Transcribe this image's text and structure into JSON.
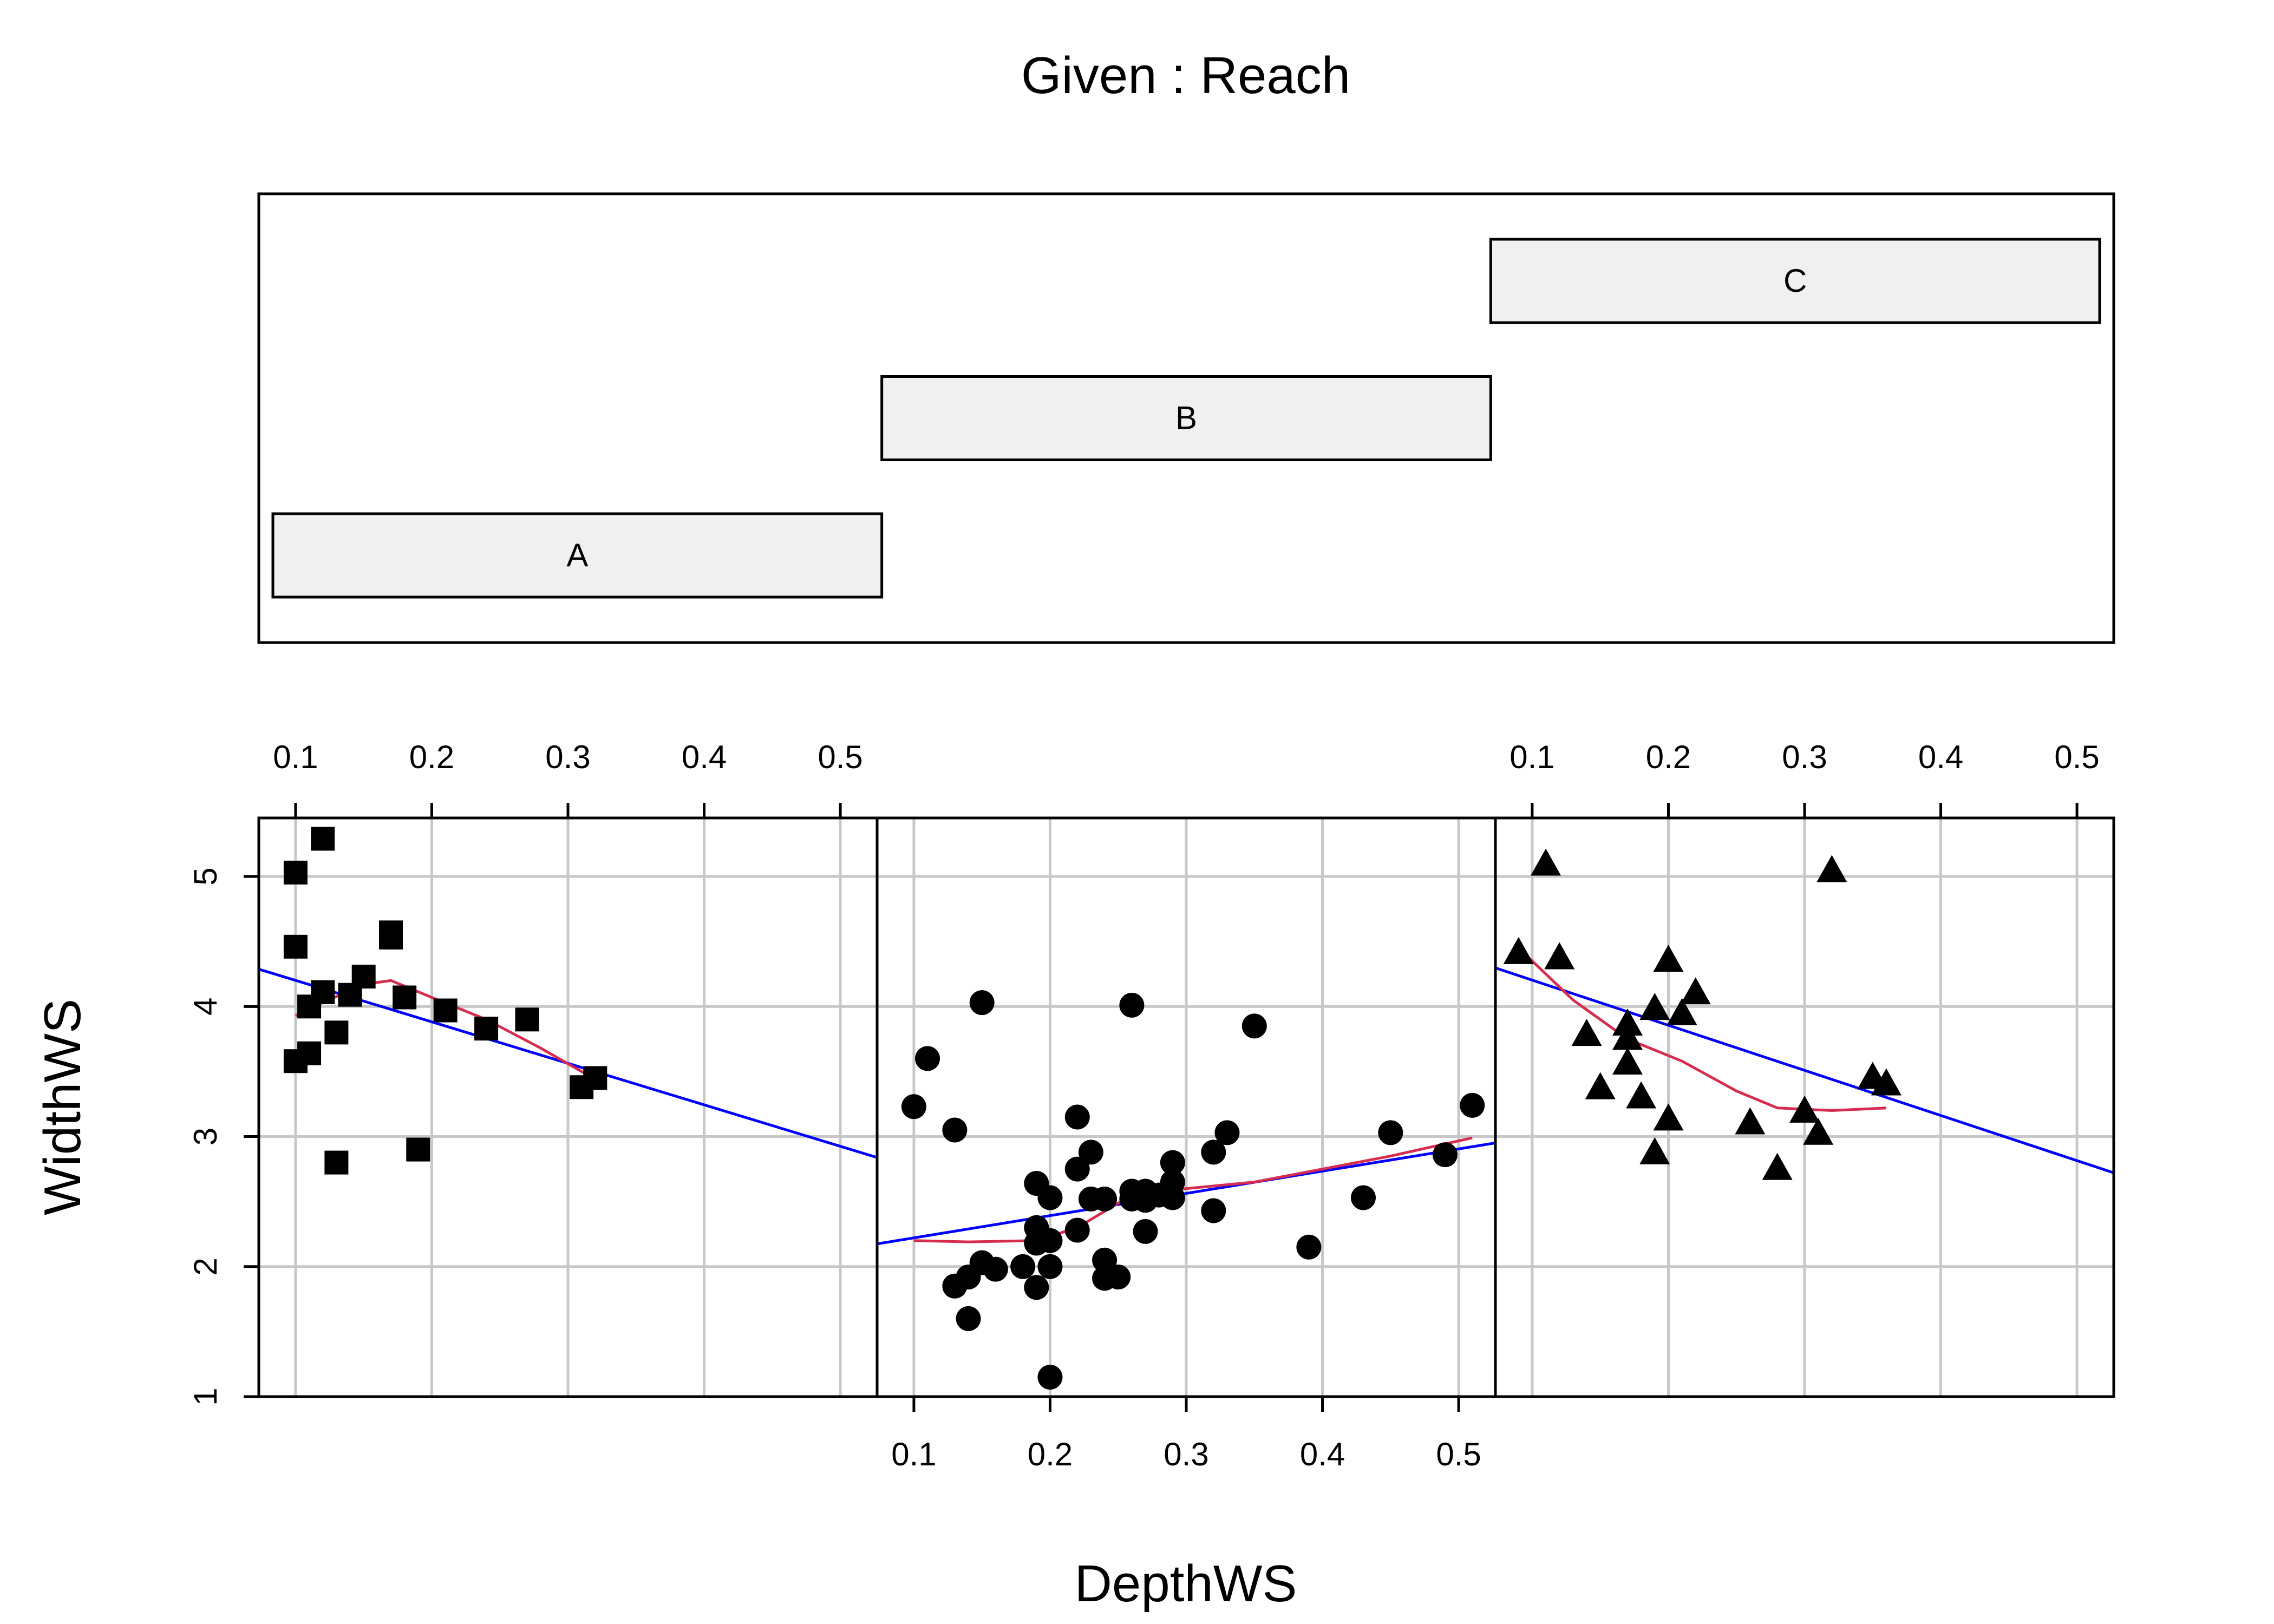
{
  "chart_data": {
    "type": "coplot-scatter",
    "title": "Given : Reach",
    "xlabel": "DepthWS",
    "ylabel": "WidthWS",
    "xlim": [
      0.073,
      0.527
    ],
    "ylim": [
      1,
      5.45
    ],
    "xticks": [
      0.1,
      0.2,
      0.3,
      0.4,
      0.5
    ],
    "xtick_labels": [
      "0.1",
      "0.2",
      "0.3",
      "0.4",
      "0.5"
    ],
    "yticks": [
      1,
      2,
      3,
      4,
      5
    ],
    "ytick_labels": [
      "1",
      "2",
      "3",
      "4",
      "5"
    ],
    "grid": true,
    "given_panel": {
      "levels": [
        {
          "label": "A",
          "start": 0,
          "end": 1
        },
        {
          "label": "B",
          "start": 1,
          "end": 2
        },
        {
          "label": "C",
          "start": 2,
          "end": 3
        }
      ]
    },
    "panels": [
      {
        "reach": "A",
        "marker": "square",
        "points": [
          [
            0.1,
            5.03
          ],
          [
            0.12,
            5.29
          ],
          [
            0.1,
            4.46
          ],
          [
            0.17,
            4.57
          ],
          [
            0.17,
            4.53
          ],
          [
            0.15,
            4.23
          ],
          [
            0.12,
            4.11
          ],
          [
            0.14,
            4.09
          ],
          [
            0.18,
            4.07
          ],
          [
            0.11,
            4.0
          ],
          [
            0.21,
            3.97
          ],
          [
            0.27,
            3.9
          ],
          [
            0.24,
            3.83
          ],
          [
            0.13,
            3.8
          ],
          [
            0.11,
            3.64
          ],
          [
            0.1,
            3.58
          ],
          [
            0.32,
            3.45
          ],
          [
            0.31,
            3.38
          ],
          [
            0.19,
            2.9
          ],
          [
            0.13,
            2.8
          ]
        ],
        "fit_line": {
          "intercept": 4.52,
          "slope": -3.19
        },
        "smooth": [
          [
            0.1,
            3.93
          ],
          [
            0.12,
            4.03
          ],
          [
            0.15,
            4.17
          ],
          [
            0.17,
            4.2
          ],
          [
            0.2,
            4.07
          ],
          [
            0.24,
            3.9
          ],
          [
            0.28,
            3.68
          ],
          [
            0.32,
            3.44
          ]
        ]
      },
      {
        "reach": "B",
        "marker": "circle",
        "points": [
          [
            0.15,
            4.03
          ],
          [
            0.26,
            4.01
          ],
          [
            0.35,
            3.85
          ],
          [
            0.11,
            3.6
          ],
          [
            0.1,
            3.23
          ],
          [
            0.51,
            3.24
          ],
          [
            0.22,
            3.15
          ],
          [
            0.13,
            3.05
          ],
          [
            0.33,
            3.03
          ],
          [
            0.45,
            3.03
          ],
          [
            0.23,
            2.88
          ],
          [
            0.32,
            2.88
          ],
          [
            0.49,
            2.86
          ],
          [
            0.29,
            2.8
          ],
          [
            0.22,
            2.75
          ],
          [
            0.29,
            2.65
          ],
          [
            0.19,
            2.64
          ],
          [
            0.26,
            2.58
          ],
          [
            0.27,
            2.58
          ],
          [
            0.28,
            2.55
          ],
          [
            0.2,
            2.53
          ],
          [
            0.23,
            2.52
          ],
          [
            0.24,
            2.52
          ],
          [
            0.43,
            2.53
          ],
          [
            0.26,
            2.52
          ],
          [
            0.27,
            2.51
          ],
          [
            0.29,
            2.53
          ],
          [
            0.32,
            2.43
          ],
          [
            0.19,
            2.3
          ],
          [
            0.22,
            2.28
          ],
          [
            0.27,
            2.27
          ],
          [
            0.19,
            2.18
          ],
          [
            0.2,
            2.2
          ],
          [
            0.39,
            2.15
          ],
          [
            0.24,
            2.05
          ],
          [
            0.15,
            2.03
          ],
          [
            0.16,
            1.98
          ],
          [
            0.18,
            2.0
          ],
          [
            0.2,
            2.0
          ],
          [
            0.14,
            1.92
          ],
          [
            0.24,
            1.91
          ],
          [
            0.25,
            1.92
          ],
          [
            0.13,
            1.85
          ],
          [
            0.19,
            1.84
          ],
          [
            0.14,
            1.6
          ],
          [
            0.2,
            1.15
          ]
        ],
        "fit_line": {
          "intercept": 2.05,
          "slope": 1.71
        },
        "smooth": [
          [
            0.1,
            2.2
          ],
          [
            0.14,
            2.19
          ],
          [
            0.19,
            2.2
          ],
          [
            0.22,
            2.3
          ],
          [
            0.26,
            2.55
          ],
          [
            0.3,
            2.6
          ],
          [
            0.35,
            2.65
          ],
          [
            0.4,
            2.75
          ],
          [
            0.45,
            2.85
          ],
          [
            0.51,
            2.99
          ]
        ]
      },
      {
        "reach": "C",
        "marker": "triangle",
        "points": [
          [
            0.11,
            5.09
          ],
          [
            0.32,
            5.04
          ],
          [
            0.09,
            4.41
          ],
          [
            0.12,
            4.37
          ],
          [
            0.2,
            4.35
          ],
          [
            0.22,
            4.1
          ],
          [
            0.19,
            3.98
          ],
          [
            0.21,
            3.94
          ],
          [
            0.17,
            3.86
          ],
          [
            0.14,
            3.78
          ],
          [
            0.17,
            3.75
          ],
          [
            0.17,
            3.56
          ],
          [
            0.35,
            3.45
          ],
          [
            0.36,
            3.4
          ],
          [
            0.15,
            3.37
          ],
          [
            0.18,
            3.3
          ],
          [
            0.3,
            3.19
          ],
          [
            0.2,
            3.13
          ],
          [
            0.26,
            3.1
          ],
          [
            0.31,
            3.02
          ],
          [
            0.19,
            2.87
          ],
          [
            0.28,
            2.75
          ]
        ],
        "fit_line": {
          "intercept": 4.55,
          "slope": -3.47
        },
        "smooth": [
          [
            0.09,
            4.45
          ],
          [
            0.13,
            4.05
          ],
          [
            0.17,
            3.75
          ],
          [
            0.21,
            3.58
          ],
          [
            0.25,
            3.35
          ],
          [
            0.28,
            3.22
          ],
          [
            0.32,
            3.2
          ],
          [
            0.36,
            3.22
          ]
        ]
      }
    ],
    "colors": {
      "points": "#000000",
      "fit_line": "#0000ff",
      "smooth_line": "#d62c4f",
      "grid": "#c8c8c8",
      "given_bar_fill": "#f0f0f0",
      "frame": "#000000"
    }
  }
}
